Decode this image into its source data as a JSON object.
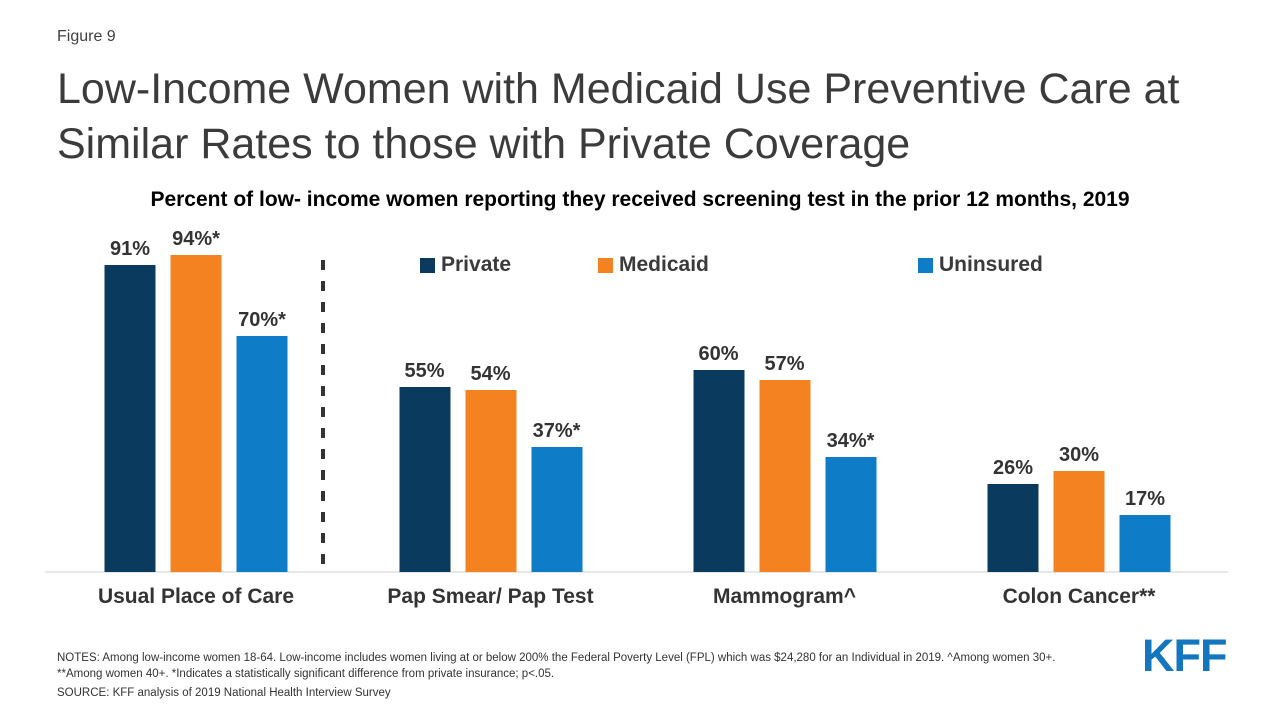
{
  "figure_label": "Figure 9",
  "title": "Low-Income Women with Medicaid Use Preventive Care at Similar Rates to those with Private Coverage",
  "subtitle": "Percent of low- income women reporting they received screening test in the prior 12 months, 2019",
  "legend": {
    "items": [
      {
        "label": "Private",
        "color": "#0B3A5F"
      },
      {
        "label": "Medicaid",
        "color": "#F58220"
      },
      {
        "label": "Uninsured",
        "color": "#0E7CC7"
      }
    ]
  },
  "chart_data": {
    "type": "bar",
    "categories": [
      "Usual Place of Care",
      "Pap Smear/ Pap Test",
      "Mammogram^",
      "Colon Cancer**"
    ],
    "series": [
      {
        "name": "Private",
        "color": "#0B3A5F",
        "values": [
          91,
          55,
          60,
          26
        ],
        "labels": [
          "91%",
          "55%",
          "60%",
          "26%"
        ]
      },
      {
        "name": "Medicaid",
        "color": "#F58220",
        "values": [
          94,
          54,
          57,
          30
        ],
        "labels": [
          "94%*",
          "54%",
          "57%",
          "30%"
        ]
      },
      {
        "name": "Uninsured",
        "color": "#0E7CC7",
        "values": [
          70,
          37,
          34,
          17
        ],
        "labels": [
          "70%*",
          "37%*",
          "34%*",
          "17%"
        ]
      }
    ],
    "ylim": [
      0,
      100
    ],
    "grid": false,
    "axis_labels_hidden": true,
    "legend_position": "top",
    "separator_after_category_index": 0
  },
  "notes": {
    "line1": "NOTES: Among low-income women 18-64. Low-income includes women living at or below 200% the Federal Poverty Level (FPL) which was $24,280 for an Individual in 2019.  ^Among women 30+.",
    "line2": "**Among women 40+. *Indicates a statistically significant difference from private insurance; p<.05.",
    "source": "SOURCE: KFF analysis of 2019 National Health Interview Survey"
  },
  "logo": {
    "text": "KFF",
    "color": "#1476BE"
  }
}
